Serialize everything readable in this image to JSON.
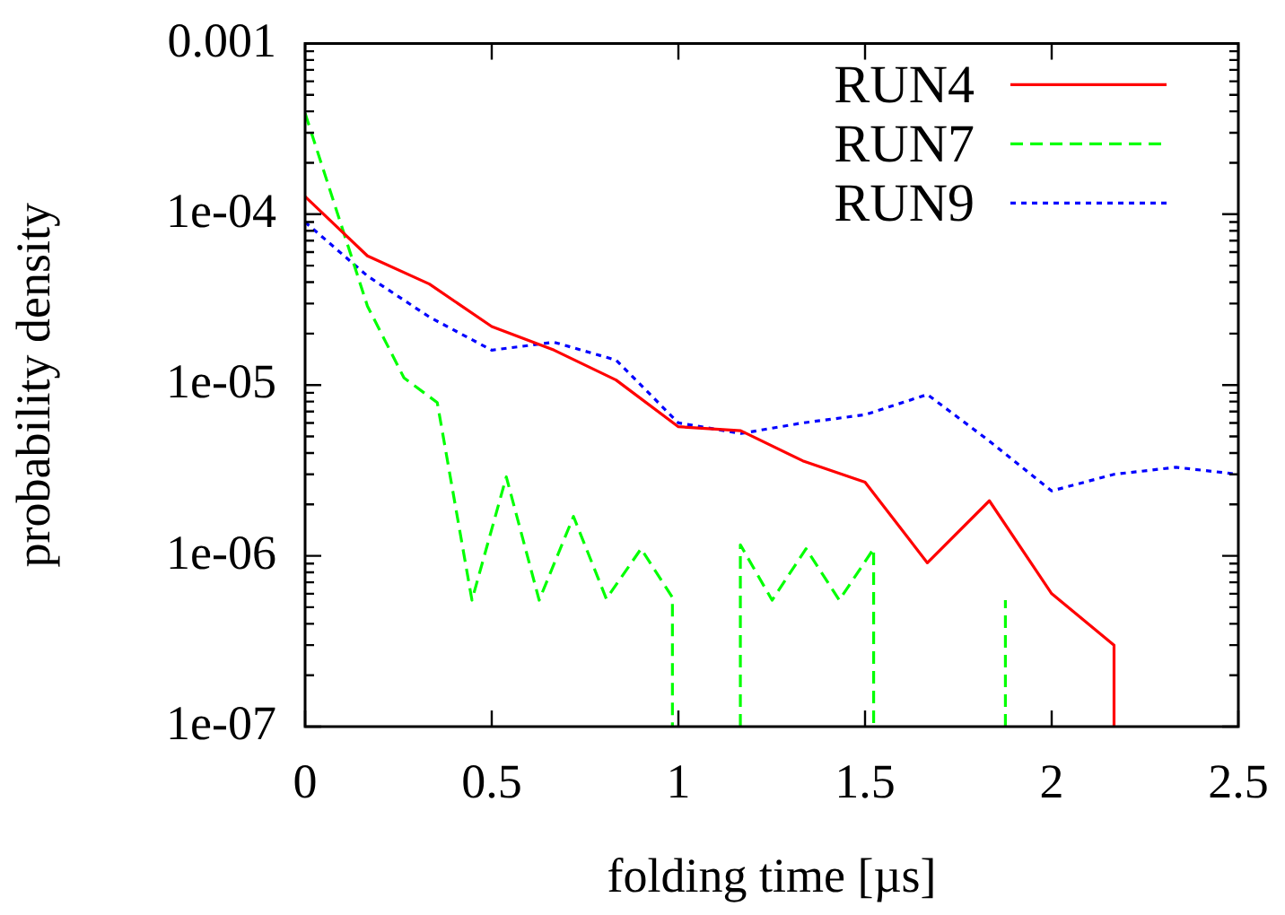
{
  "chart_data": {
    "type": "line",
    "xlabel": "folding time [µs]",
    "ylabel": "probability density",
    "log": "y",
    "grid": false,
    "legend": "top right",
    "marker": "none",
    "xlim": [
      0,
      2.5
    ],
    "xticks": [
      0,
      0.5,
      1,
      1.5,
      2,
      2.5
    ],
    "ylim": [
      1e-07,
      0.001
    ],
    "yticks": [
      {
        "value": 1e-07,
        "label": "1e-07"
      },
      {
        "value": 2e-07,
        "label": null
      },
      {
        "value": 3e-07,
        "label": null
      },
      {
        "value": 4e-07,
        "label": null
      },
      {
        "value": 5e-07,
        "label": null
      },
      {
        "value": 6e-07,
        "label": null
      },
      {
        "value": 7e-07,
        "label": null
      },
      {
        "value": 8e-07,
        "label": null
      },
      {
        "value": 9e-07,
        "label": null
      },
      {
        "value": 1e-06,
        "label": "1e-06"
      },
      {
        "value": 2e-06,
        "label": null
      },
      {
        "value": 3e-06,
        "label": null
      },
      {
        "value": 4e-06,
        "label": null
      },
      {
        "value": 5e-06,
        "label": null
      },
      {
        "value": 6e-06,
        "label": null
      },
      {
        "value": 7e-06,
        "label": null
      },
      {
        "value": 8e-06,
        "label": null
      },
      {
        "value": 9e-06,
        "label": null
      },
      {
        "value": 1e-05,
        "label": "1e-05"
      },
      {
        "value": 2e-05,
        "label": null
      },
      {
        "value": 3e-05,
        "label": null
      },
      {
        "value": 4e-05,
        "label": null
      },
      {
        "value": 5e-05,
        "label": null
      },
      {
        "value": 6e-05,
        "label": null
      },
      {
        "value": 7e-05,
        "label": null
      },
      {
        "value": 8e-05,
        "label": null
      },
      {
        "value": 9e-05,
        "label": null
      },
      {
        "value": 0.0001,
        "label": "1e-04"
      },
      {
        "value": 0.0002,
        "label": null
      },
      {
        "value": 0.0003,
        "label": null
      },
      {
        "value": 0.0004,
        "label": null
      },
      {
        "value": 0.0005,
        "label": null
      },
      {
        "value": 0.0006,
        "label": null
      },
      {
        "value": 0.0007,
        "label": null
      },
      {
        "value": 0.0008,
        "label": null
      },
      {
        "value": 0.0009,
        "label": null
      },
      {
        "value": 0.001,
        "label": "0.001"
      }
    ],
    "series": [
      {
        "name": "RUN4",
        "color": "#ff0000",
        "line_style": "solid",
        "x": [
          0,
          0.167,
          0.333,
          0.5,
          0.667,
          0.833,
          1,
          1.167,
          1.333,
          1.5,
          1.667,
          1.833,
          2,
          2.167,
          2.167
        ],
        "values": [
          0.000127,
          5.7e-05,
          3.9e-05,
          2.2e-05,
          1.6e-05,
          1.07e-05,
          5.7e-06,
          5.4e-06,
          3.6e-06,
          2.7e-06,
          9.1e-07,
          2.1e-06,
          6e-07,
          3e-07,
          1e-07
        ]
      },
      {
        "name": "RUN7",
        "color": "#00ff00",
        "line_style": "dashed",
        "x": [
          0,
          0.167,
          0.265,
          0.354,
          0.447,
          0.539,
          0.627,
          0.719,
          0.807,
          0.9,
          0.984,
          0.984,
          1.07,
          1.166,
          1.166,
          1.251,
          1.342,
          1.431,
          1.523,
          1.523,
          1.7,
          1.876,
          1.876
        ],
        "values": [
          0.00039,
          2.9e-05,
          1.1e-05,
          7.9e-06,
          5.5e-07,
          2.9e-06,
          5.5e-07,
          1.7e-06,
          5.6e-07,
          1.1e-06,
          5.7e-07,
          1e-07,
          null,
          1e-07,
          1.16e-06,
          5.5e-07,
          1.1e-06,
          5.5e-07,
          1.1e-06,
          1e-07,
          null,
          1e-07,
          5.5e-07
        ]
      },
      {
        "name": "RUN9",
        "color": "#0000ff",
        "line_style": "dotted",
        "x": [
          0,
          0.167,
          0.333,
          0.5,
          0.667,
          0.833,
          1,
          1.167,
          1.333,
          1.5,
          1.667,
          1.833,
          2,
          2.167,
          2.333,
          2.5
        ],
        "values": [
          9e-05,
          4.35e-05,
          2.5e-05,
          1.6e-05,
          1.78e-05,
          1.4e-05,
          6e-06,
          5.2e-06,
          6e-06,
          6.7e-06,
          8.8e-06,
          4.7e-06,
          2.4e-06,
          3e-06,
          3.3e-06,
          3e-06
        ]
      }
    ]
  }
}
